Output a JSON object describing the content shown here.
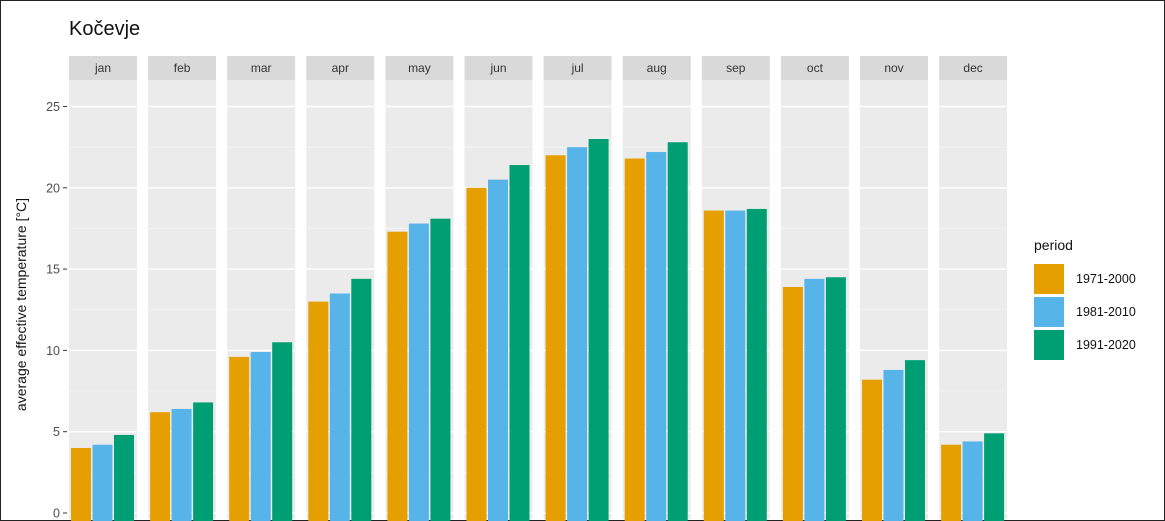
{
  "chart_data": {
    "type": "bar",
    "title": "Kočevje",
    "xlabel": "",
    "ylabel": "average effective temperature [°C]",
    "ylim": [
      0,
      26
    ],
    "yticks": [
      0,
      5,
      10,
      15,
      20,
      25
    ],
    "categories": [
      "jan",
      "feb",
      "mar",
      "apr",
      "may",
      "jun",
      "jul",
      "aug",
      "sep",
      "oct",
      "nov",
      "dec"
    ],
    "legend_title": "period",
    "legend_position": "right",
    "grid": true,
    "series": [
      {
        "name": "1971-2000",
        "color": "#E69F00",
        "values": [
          4.0,
          6.2,
          9.6,
          13.0,
          17.3,
          20.0,
          22.0,
          21.8,
          18.6,
          13.9,
          8.2,
          4.2
        ]
      },
      {
        "name": "1981-2010",
        "color": "#56B4E9",
        "values": [
          4.2,
          6.4,
          9.9,
          13.5,
          17.8,
          20.5,
          22.5,
          22.2,
          18.6,
          14.4,
          8.8,
          4.4
        ]
      },
      {
        "name": "1991-2020",
        "color": "#009E73",
        "values": [
          4.8,
          6.8,
          10.5,
          14.4,
          18.1,
          21.4,
          23.0,
          22.8,
          18.7,
          14.5,
          9.4,
          4.9
        ]
      }
    ]
  }
}
